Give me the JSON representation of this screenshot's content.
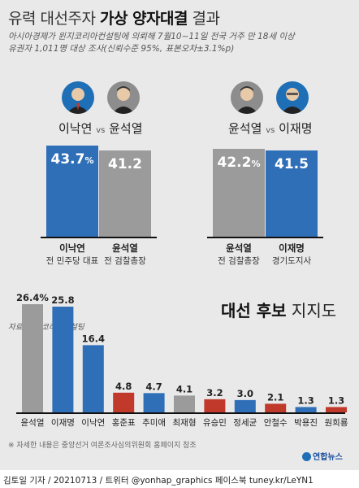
{
  "header": {
    "title_part1": "유력 대선주자 ",
    "title_bold": "가상 양자대결",
    "title_part2": " 결과",
    "subtitle_line1": "아시아경제가 윈지코리아컨설팅에 의뢰해 7월10∼11일 전국 거주 만 18세 이상",
    "subtitle_line2": "유권자 1,011명 대상 조사(신뢰수준 95%, 표본오차±3.1%p)"
  },
  "matchups": [
    {
      "label_left": "이낙연",
      "vs": "vs",
      "label_right": "윤석열",
      "left": {
        "name": "이낙연",
        "role": "전 민주당 대표",
        "value_text": "43.7",
        "unit": "%",
        "value": 43.7,
        "color": "#2f6fb8"
      },
      "right": {
        "name": "윤석열",
        "role": "전 검찰총장",
        "value_text": "41.2",
        "unit": "",
        "value": 41.2,
        "color": "#9b9b9b"
      }
    },
    {
      "label_left": "윤석열",
      "vs": "vs",
      "label_right": "이재명",
      "left": {
        "name": "윤석열",
        "role": "전 검찰총장",
        "value_text": "42.2",
        "unit": "%",
        "value": 42.2,
        "color": "#9b9b9b"
      },
      "right": {
        "name": "이재명",
        "role": "경기도지사",
        "value_text": "41.5",
        "unit": "",
        "value": 41.5,
        "color": "#2f6fb8"
      }
    }
  ],
  "support": {
    "heading_bold": "대선 후보",
    "heading_rest": " 지지도",
    "source": "자료/ 윈지코리아컨설팅",
    "note": "※ 자세한 내용은 중앙선거 여론조사심의위원회 홈페이지 참조"
  },
  "chart_data": {
    "type": "bar",
    "categories": [
      "윤석열",
      "이재명",
      "이낙연",
      "홍준표",
      "추미애",
      "최재형",
      "유승민",
      "정세균",
      "안철수",
      "박용진",
      "원희룡"
    ],
    "values": [
      26.4,
      25.8,
      16.4,
      4.8,
      4.7,
      4.1,
      3.2,
      3.0,
      2.1,
      1.3,
      1.3
    ],
    "value_labels": [
      "26.4%",
      "25.8",
      "16.4",
      "4.8",
      "4.7",
      "4.1",
      "3.2",
      "3.0",
      "2.1",
      "1.3",
      "1.3"
    ],
    "colors": [
      "#9b9b9b",
      "#2f6fb8",
      "#2f6fb8",
      "#c0392b",
      "#2f6fb8",
      "#9b9b9b",
      "#c0392b",
      "#2f6fb8",
      "#c0392b",
      "#2f6fb8",
      "#c0392b"
    ],
    "title": "대선 후보 지지도",
    "xlabel": "",
    "ylabel": ""
  },
  "footer": {
    "logo_text": "연합뉴스",
    "credit": "김토일 기자 / 20210713 / 트위터 @yonhap_graphics  페이스북 tuney.kr/LeYN1"
  }
}
